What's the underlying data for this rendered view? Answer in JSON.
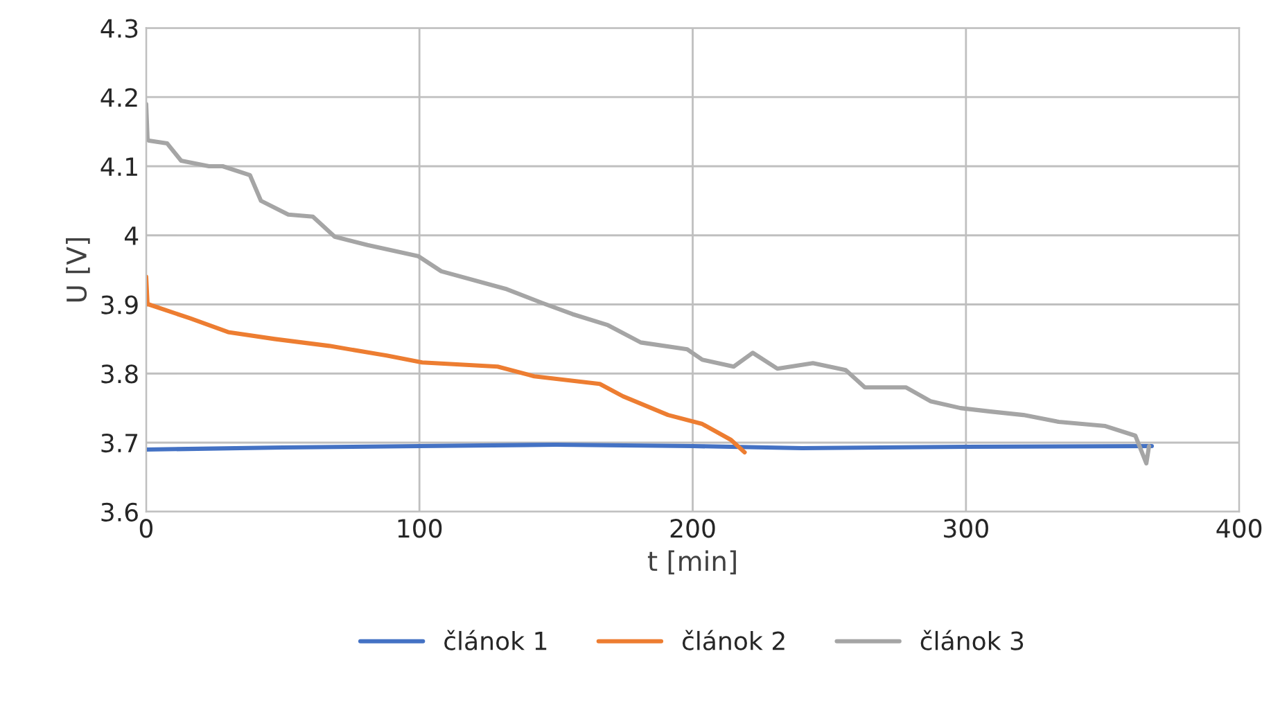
{
  "chart_data": {
    "type": "line",
    "xlabel": "t [min]",
    "ylabel": "U [V]",
    "xlim": [
      0,
      400
    ],
    "xticks": [
      0,
      100,
      200,
      300,
      400
    ],
    "ylim": [
      3.6,
      4.3
    ],
    "yticks": [
      3.6,
      3.7,
      3.8,
      3.9,
      4,
      4.1,
      4.2,
      4.3
    ],
    "grid": true,
    "legend": "bottom",
    "series": [
      {
        "name": "článok 1",
        "color": "#4472c4",
        "x": [
          0,
          50,
          100,
          150,
          200,
          240,
          300,
          368
        ],
        "values": [
          3.69,
          3.693,
          3.695,
          3.697,
          3.695,
          3.692,
          3.694,
          3.695
        ]
      },
      {
        "name": "článok 2",
        "color": "#ed7d31",
        "x": [
          0,
          0.5,
          1,
          16,
          30,
          47,
          67,
          88,
          101,
          128.6,
          142,
          166,
          174.5,
          191,
          203.5,
          214,
          219
        ],
        "values": [
          3.94,
          3.9,
          3.9,
          3.88,
          3.86,
          3.85,
          3.84,
          3.826,
          3.816,
          3.81,
          3.796,
          3.785,
          3.767,
          3.74,
          3.727,
          3.704,
          3.686
        ]
      },
      {
        "name": "článok 3",
        "color": "#a5a5a5",
        "x": [
          0,
          0.5,
          1,
          7.7,
          12.8,
          23,
          28,
          38,
          42,
          52,
          61,
          69,
          81,
          99.5,
          108,
          132,
          145,
          156,
          169,
          181,
          198,
          203.5,
          215,
          222,
          231,
          244,
          256,
          263,
          278,
          287,
          298,
          309,
          321,
          334,
          351,
          362,
          366,
          367
        ],
        "values": [
          4.19,
          4.14,
          4.137,
          4.133,
          4.108,
          4.1,
          4.1,
          4.087,
          4.05,
          4.03,
          4.027,
          3.998,
          3.986,
          3.97,
          3.948,
          3.922,
          3.902,
          3.886,
          3.87,
          3.845,
          3.835,
          3.82,
          3.81,
          3.83,
          3.807,
          3.815,
          3.805,
          3.78,
          3.78,
          3.76,
          3.75,
          3.745,
          3.74,
          3.73,
          3.724,
          3.71,
          3.67,
          3.695
        ]
      }
    ]
  }
}
